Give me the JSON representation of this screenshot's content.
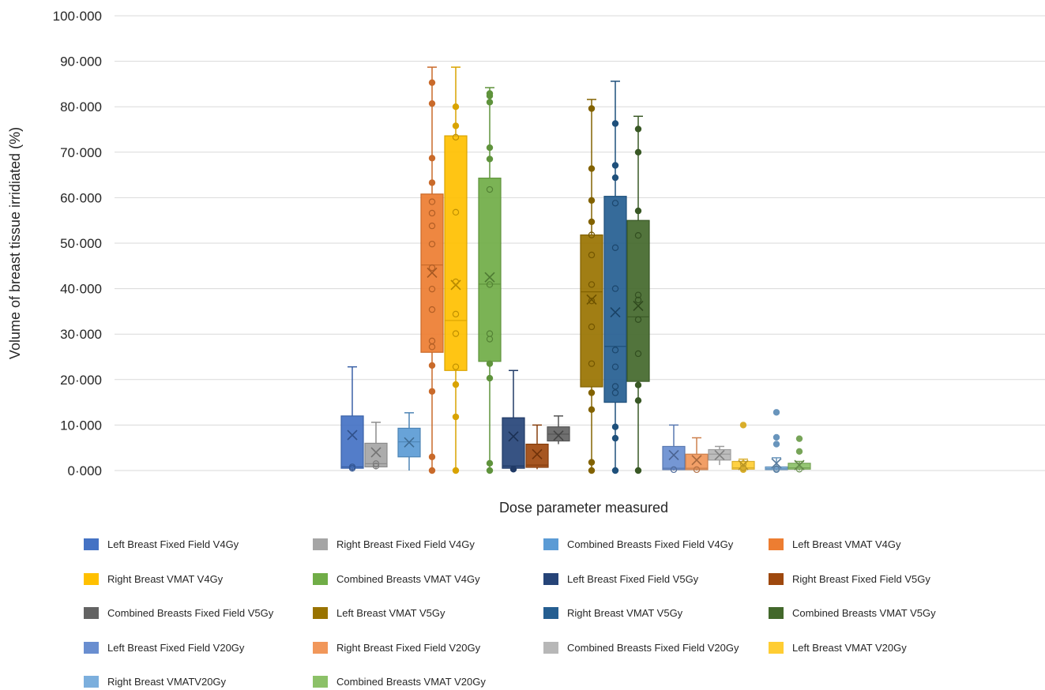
{
  "chart_data": {
    "type": "box",
    "xlabel": "Dose parameter measured",
    "ylabel": "Volume of breast tissue irridiated (%)",
    "ylim": [
      0,
      100
    ],
    "y_ticks": [
      "0·000",
      "10·000",
      "20·000",
      "30·000",
      "40·000",
      "50·000",
      "60·000",
      "70·000",
      "80·000",
      "90·000",
      "100·000"
    ],
    "grid": true,
    "legend_position": "bottom",
    "series": [
      {
        "name": "Left Breast Fixed Field V4Gy",
        "color": "#4472C4",
        "min": 0,
        "q1": 0.5,
        "median": 0.8,
        "q3": 12,
        "max": 22.8,
        "mean": 7.8,
        "points": [
          0.5,
          0.8
        ]
      },
      {
        "name": "Right Breast Fixed Field V4Gy",
        "color": "#A5A5A5",
        "min": 0.3,
        "q1": 0.8,
        "median": 1.5,
        "q3": 6,
        "max": 10.6,
        "mean": 4.0,
        "points": [
          1.0,
          1.5
        ]
      },
      {
        "name": "Combined Breasts Fixed Field V4Gy",
        "color": "#5B9BD5",
        "min": 0,
        "q1": 3,
        "median": 6.3,
        "q3": 9.3,
        "max": 12.7,
        "mean": 6.2,
        "points": []
      },
      {
        "name": "Left Breast VMAT V4Gy",
        "color": "#ED7D31",
        "min": 0,
        "q1": 26,
        "median": 45.2,
        "q3": 60.8,
        "max": 88.7,
        "mean": 43.5,
        "points": [
          0,
          3,
          17.4,
          23.1,
          27.2,
          28.5,
          35.4,
          39.9,
          44.6,
          49.8,
          53.8,
          56.6,
          59.1,
          63.3,
          68.7,
          80.7,
          85.3
        ]
      },
      {
        "name": "Right Breast VMAT V4Gy",
        "color": "#FFC000",
        "min": 0,
        "q1": 22,
        "median": 33,
        "q3": 73.6,
        "max": 88.7,
        "mean": 40.8,
        "points": [
          0,
          11.8,
          18.9,
          22.8,
          30.1,
          34.4,
          41.5,
          56.8,
          73.3,
          75.8,
          80
        ]
      },
      {
        "name": "Combined Breasts VMAT V4Gy",
        "color": "#70AD47",
        "min": 0,
        "q1": 24,
        "median": 41,
        "q3": 64.3,
        "max": 84.2,
        "mean": 42.5,
        "points": [
          0,
          1.6,
          20.3,
          23.5,
          28.9,
          30.1,
          40.9,
          61.8,
          68.5,
          71,
          81,
          82.4,
          82.9
        ]
      },
      {
        "name": "Left Breast Fixed Field V5Gy",
        "color": "#264478",
        "min": 0,
        "q1": 0.5,
        "median": 1,
        "q3": 11.6,
        "max": 22,
        "mean": 7.5,
        "points": [
          0.3
        ]
      },
      {
        "name": "Right Breast Fixed Field V5Gy",
        "color": "#9E480E",
        "min": 0.3,
        "q1": 0.7,
        "median": 1.2,
        "q3": 5.8,
        "max": 10,
        "mean": 3.6,
        "points": []
      },
      {
        "name": "Combined Breasts Fixed Field V5Gy",
        "color": "#636363",
        "min": 5.8,
        "q1": 6.5,
        "median": 8,
        "q3": 9.6,
        "max": 12,
        "mean": 7.7,
        "points": []
      },
      {
        "name": "Left Breast VMAT V5Gy",
        "color": "#997300",
        "min": 0,
        "q1": 18.4,
        "median": 39.3,
        "q3": 51.8,
        "max": 81.6,
        "mean": 37.6,
        "points": [
          0,
          1.8,
          13.4,
          17.1,
          23.5,
          31.6,
          37.3,
          40.9,
          47.4,
          51.8,
          54.7,
          59.4,
          66.4,
          79.6
        ]
      },
      {
        "name": "Right Breast VMAT V5Gy",
        "color": "#255E91",
        "min": 0,
        "q1": 15,
        "median": 27.3,
        "q3": 60.3,
        "max": 85.6,
        "mean": 34.8,
        "points": [
          0,
          7.1,
          9.6,
          17.1,
          18.5,
          22.8,
          26.5,
          40,
          49,
          58.8,
          64.4,
          67.1,
          76.3
        ]
      },
      {
        "name": "Combined Breasts VMAT V5Gy",
        "color": "#43682B",
        "min": 0,
        "q1": 19.6,
        "median": 33.8,
        "q3": 55,
        "max": 77.9,
        "mean": 36.2,
        "points": [
          0,
          15.4,
          18.8,
          25.7,
          33.2,
          37.5,
          38.6,
          51.7,
          57.1,
          70,
          75.1
        ]
      },
      {
        "name": "Left Breast Fixed Field V20Gy",
        "color": "#698ED0",
        "min": 0,
        "q1": 0.2,
        "median": 0.5,
        "q3": 5.3,
        "max": 10,
        "mean": 3.4,
        "points": [
          0.2
        ]
      },
      {
        "name": "Right Breast Fixed Field V20Gy",
        "color": "#F1975A",
        "min": 0,
        "q1": 0.2,
        "median": 0.5,
        "q3": 3.6,
        "max": 7.2,
        "mean": 2.3,
        "points": [
          0.2
        ]
      },
      {
        "name": "Combined Breasts Fixed Field V20Gy",
        "color": "#B7B7B7",
        "min": 1.2,
        "q1": 2.3,
        "median": 3.6,
        "q3": 4.6,
        "max": 5.3,
        "mean": 3.4,
        "points": []
      },
      {
        "name": "Left Breast VMAT V20Gy",
        "color": "#FFCD33",
        "min": 0,
        "q1": 0.3,
        "median": 0.6,
        "q3": 2,
        "max": 2.5,
        "mean": 1.2,
        "points": [
          0.2,
          0.6,
          1.5,
          10
        ]
      },
      {
        "name": "Right Breast VMATV20Gy",
        "color": "#7CAFDD",
        "min": 0,
        "q1": 0.2,
        "median": 0.4,
        "q3": 0.8,
        "max": 2.8,
        "mean": 1.6,
        "points": [
          0.2,
          0.4,
          5.8,
          7.3,
          12.8
        ]
      },
      {
        "name": "Combined Breasts VMAT V20Gy",
        "color": "#8CC168",
        "min": 0,
        "q1": 0.3,
        "median": 0.6,
        "q3": 1.6,
        "max": 2,
        "mean": 1.2,
        "points": [
          0.3,
          4.2,
          7
        ]
      }
    ]
  }
}
